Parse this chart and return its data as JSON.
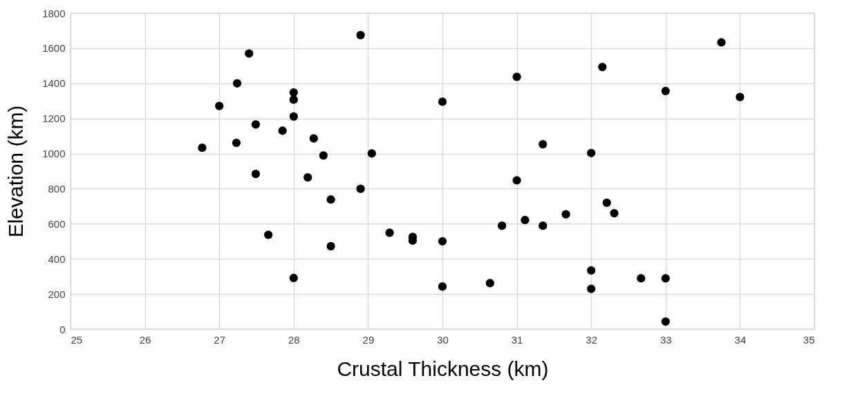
{
  "chart_data": {
    "type": "scatter",
    "xlabel": "Crustal Thickness (km)",
    "ylabel": "Elevation (km)",
    "x": [
      26.77,
      27.0,
      27.24,
      27.23,
      27.4,
      27.49,
      27.49,
      27.66,
      27.85,
      28.0,
      28.0,
      28.0,
      28.0,
      28.19,
      28.27,
      28.4,
      28.5,
      28.5,
      28.9,
      28.9,
      29.05,
      29.29,
      29.6,
      29.6,
      30.0,
      30.0,
      30.0,
      30.64,
      30.8,
      31.0,
      31.0,
      31.11,
      31.35,
      31.35,
      31.66,
      32.0,
      32.0,
      32.0,
      32.15,
      32.21,
      32.31,
      32.67,
      33.0,
      33.0,
      33.0,
      33.75,
      34.0
    ],
    "values": [
      1033,
      1271,
      1400,
      1061,
      1570,
      1166,
      884,
      537,
      1130,
      1348,
      1307,
      1211,
      291,
      864,
      1086,
      989,
      738,
      472,
      1675,
      799,
      1001,
      549,
      525,
      504,
      1295,
      500,
      242,
      262,
      589,
      1437,
      847,
      621,
      1053,
      589,
      654,
      1003,
      334,
      229,
      1493,
      720,
      660,
      289,
      289,
      43,
      1356,
      1633,
      1322
    ],
    "color": "#000000",
    "marker": "circle",
    "xlim": [
      25,
      35
    ],
    "xticks": [
      25,
      26,
      27,
      28,
      29,
      30,
      31,
      32,
      33,
      34,
      35
    ],
    "ylim": [
      0,
      1800
    ],
    "yticks": [
      0,
      200,
      400,
      600,
      800,
      1000,
      1200,
      1400,
      1600,
      1800
    ],
    "grid": true
  }
}
